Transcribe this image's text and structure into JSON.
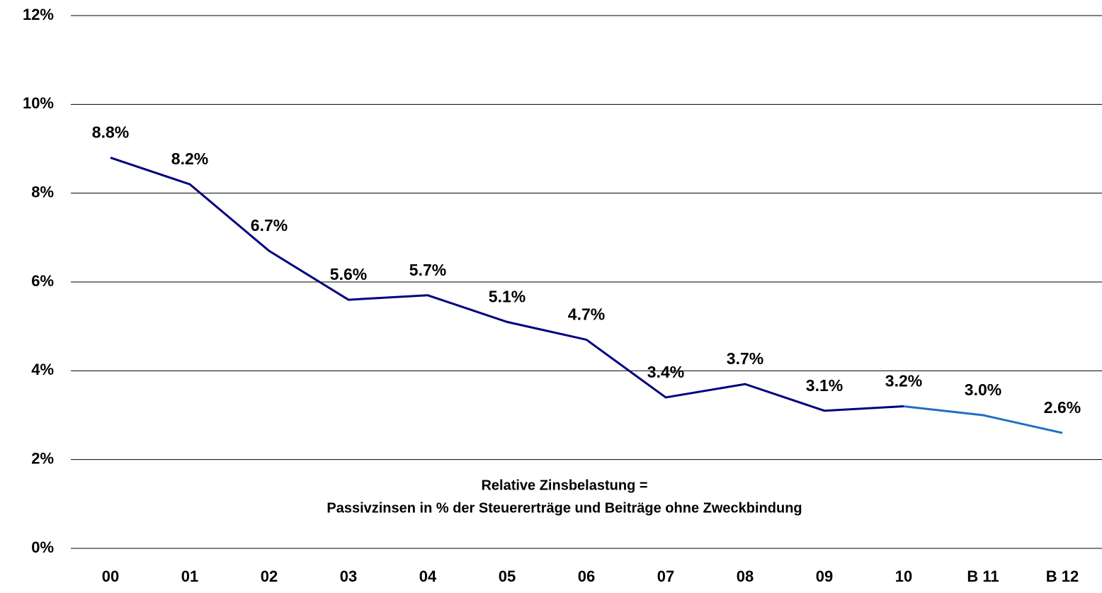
{
  "chart_data": {
    "type": "line",
    "categories": [
      "00",
      "01",
      "02",
      "03",
      "04",
      "05",
      "06",
      "07",
      "08",
      "09",
      "10",
      "B 11",
      "B 12"
    ],
    "series": [
      {
        "color": "#000080",
        "values": [
          8.8,
          8.2,
          6.7,
          5.6,
          5.7,
          5.1,
          4.7,
          3.4,
          3.7,
          3.1,
          3.2,
          null,
          null
        ],
        "value_labels": [
          "8.8%",
          "8.2%",
          "6.7%",
          "5.6%",
          "5.7%",
          "5.1%",
          "4.7%",
          "3.4%",
          "3.7%",
          "3.1%",
          "3.2%",
          null,
          null
        ]
      },
      {
        "color": "#1f6fc4",
        "values": [
          null,
          null,
          null,
          null,
          null,
          null,
          null,
          null,
          null,
          null,
          3.2,
          3.0,
          2.6
        ],
        "value_labels": [
          null,
          null,
          null,
          null,
          null,
          null,
          null,
          null,
          null,
          null,
          null,
          "3.0%",
          "2.6%"
        ]
      }
    ],
    "ylim": [
      0,
      12
    ],
    "yticks": [
      {
        "value": 0,
        "label": "0%"
      },
      {
        "value": 2,
        "label": "2%"
      },
      {
        "value": 4,
        "label": "4%"
      },
      {
        "value": 6,
        "label": "6%"
      },
      {
        "value": 8,
        "label": "8%"
      },
      {
        "value": 10,
        "label": "10%"
      },
      {
        "value": 12,
        "label": "12%"
      }
    ],
    "grid": true,
    "annotation": [
      "Relative Zinsbelastung =",
      "Passivzinsen in % der Steuererträge und Beiträge ohne Zweckbindung"
    ]
  }
}
